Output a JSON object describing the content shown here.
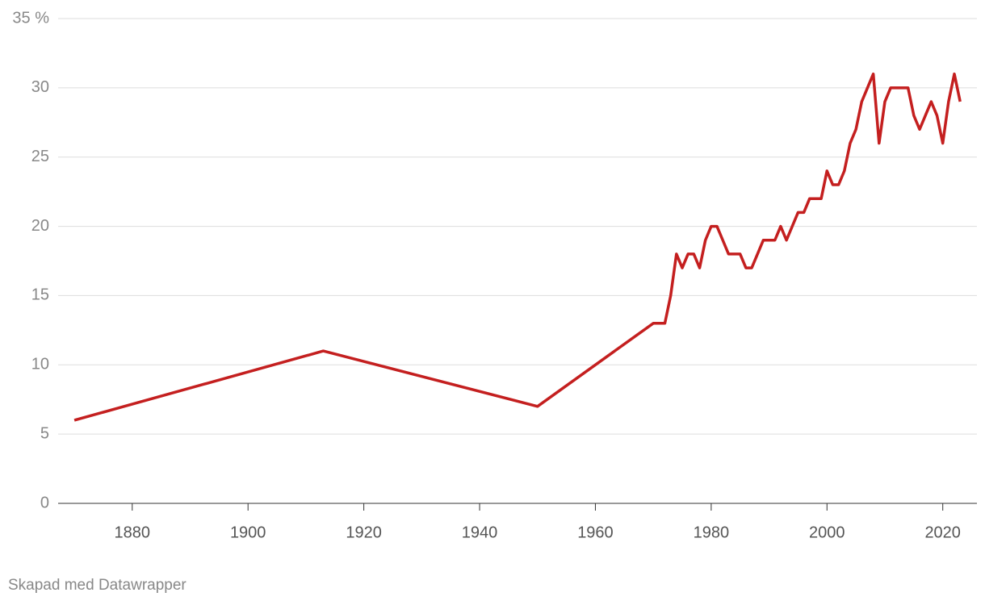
{
  "chart_data": {
    "type": "line",
    "x": [
      1870,
      1913,
      1950,
      1970,
      1972,
      1973,
      1974,
      1975,
      1976,
      1977,
      1978,
      1979,
      1980,
      1981,
      1982,
      1983,
      1984,
      1985,
      1986,
      1987,
      1988,
      1989,
      1990,
      1991,
      1992,
      1993,
      1994,
      1995,
      1996,
      1997,
      1998,
      1999,
      2000,
      2001,
      2002,
      2003,
      2004,
      2005,
      2006,
      2007,
      2008,
      2009,
      2010,
      2011,
      2012,
      2013,
      2014,
      2015,
      2016,
      2017,
      2018,
      2019,
      2020,
      2021,
      2022,
      2023
    ],
    "series": [
      {
        "color": "#c41f1f",
        "values": [
          6,
          11,
          7,
          13,
          13,
          15,
          18,
          17,
          18,
          18,
          17,
          19,
          20,
          20,
          19,
          18,
          18,
          18,
          17,
          17,
          18,
          19,
          19,
          19,
          20,
          19,
          20,
          21,
          21,
          22,
          22,
          22,
          24,
          23,
          23,
          24,
          26,
          27,
          29,
          30,
          31,
          26,
          29,
          30,
          30,
          30,
          30,
          28,
          27,
          28,
          29,
          28,
          26,
          29,
          31,
          29
        ]
      }
    ],
    "xlim": [
      1867.2,
      2025.9
    ],
    "xticks": [
      1880,
      1900,
      1920,
      1940,
      1960,
      1980,
      2000,
      2020
    ],
    "ylim": [
      0,
      35
    ],
    "yticks": [
      0,
      5,
      10,
      15,
      20,
      25,
      30,
      {
        "value": 35,
        "label": "35 %"
      }
    ],
    "grid": true,
    "footer": "Skapad med Datawrapper"
  }
}
